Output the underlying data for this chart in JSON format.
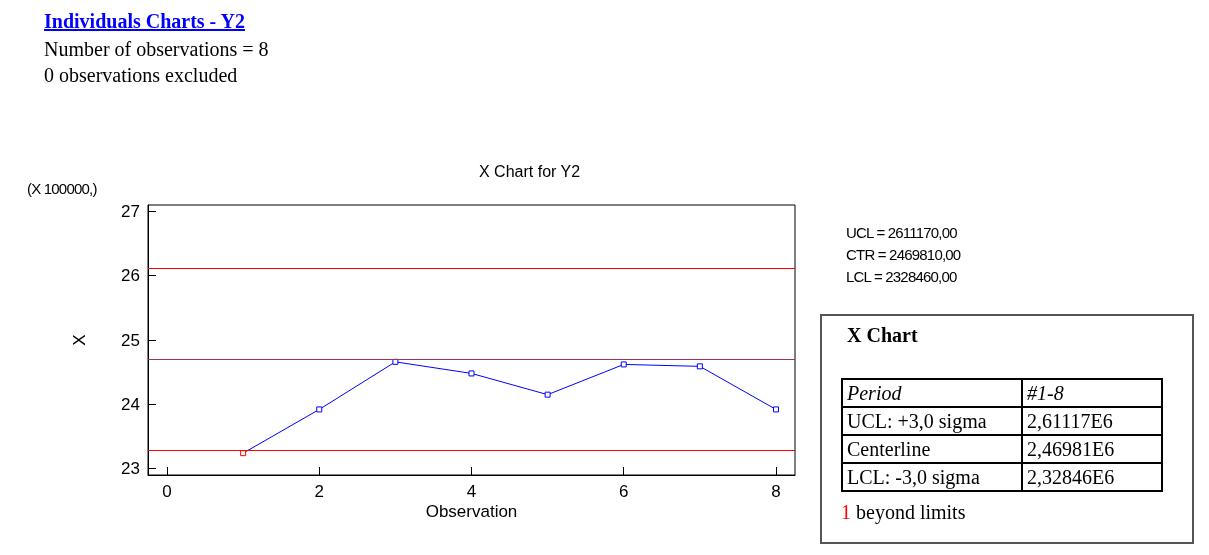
{
  "chart_data": [
    {
      "type": "line",
      "title": "X Chart for Y2",
      "xlabel": "Observation",
      "ylabel": "X",
      "annotations": [
        "Individuals Charts - Y2",
        "Number of observations = 8",
        "0 observations excluded",
        "(X 100000,)",
        "UCL = 2611170,00",
        "CTR = 2469810,00",
        "LCL = 2328460,00"
      ],
      "x": [
        1,
        2,
        3,
        4,
        5,
        6,
        7,
        8
      ],
      "series": [
        {
          "color": "#0000ff",
          "colors": [
            "#ff0000",
            "#0000ff",
            "#0000ff",
            "#0000ff",
            "#0000ff",
            "#0000ff",
            "#0000ff",
            "#0000ff"
          ],
          "values": [
            23.24,
            23.92,
            24.66,
            24.48,
            24.15,
            24.62,
            24.59,
            23.92
          ]
        }
      ],
      "xlim": [
        -0.25,
        8.25
      ],
      "xticks": [
        0,
        2,
        4,
        6,
        8
      ],
      "ylim": [
        22.9,
        27.1
      ],
      "yticks": [
        23,
        24,
        25,
        26,
        27
      ],
      "ref_lines": [
        {
          "axis": "y",
          "value": 26.1117,
          "color": "#ff0000"
        },
        {
          "axis": "y",
          "value": 24.6981,
          "color": "#993366"
        },
        {
          "axis": "y",
          "value": 23.2846,
          "color": "#ff0000"
        }
      ],
      "marker": "square",
      "line_style": "solid"
    },
    {
      "type": "other",
      "title": "X Chart",
      "annotations": [
        "Period",
        "#1-8",
        "UCL: +3,0 sigma",
        "2,61117E6",
        "Centerline",
        "2,46981E6",
        "LCL: -3,0 sigma",
        "2,32846E6",
        "1",
        "beyond limits"
      ]
    }
  ]
}
